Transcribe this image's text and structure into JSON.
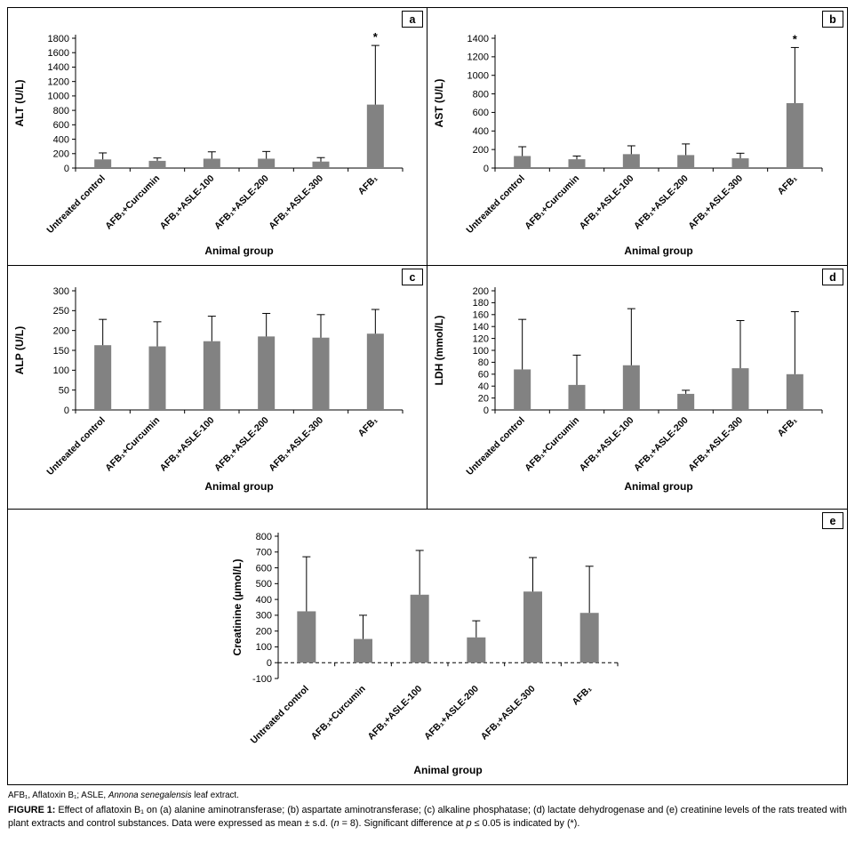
{
  "footer": {
    "abbrev_part1": "AFB₁, Aflatoxin B₁; ASLE, ",
    "abbrev_italic": "Annona senegalensis",
    "abbrev_part2": " leaf extract.",
    "figure_label": "FIGURE 1:",
    "caption_part1": " Effect of aflatoxin B₁ on (a) alanine aminotransferase; (b) aspartate aminotransferase; (c) alkaline phosphatase; (d) lactate dehydrogenase and (e) creatinine levels of the rats treated with plant extracts and control substances. Data were expressed as mean ± s.d. (",
    "caption_italic_n": "n",
    "caption_part2": " = 8). Significant difference at ",
    "caption_italic_p": "p",
    "caption_part3": " ≤ 0.05 is indicated by (*)."
  },
  "chart_data": [
    {
      "id": "a",
      "panel_label": "a",
      "type": "bar",
      "title": "",
      "xlabel": "Animal group",
      "ylabel": "ALT (U/L)",
      "ylim": [
        0,
        1800
      ],
      "ytick_step": 200,
      "grid": false,
      "legend": false,
      "categories": [
        "Untreated control",
        "AFB₁+Curcumin",
        "AFB₁+ASLE-100",
        "AFB₁+ASLE-200",
        "AFB₁+ASLE-300",
        "AFB₁"
      ],
      "values": [
        120,
        100,
        130,
        130,
        90,
        880
      ],
      "errors_upper": [
        90,
        40,
        95,
        100,
        55,
        820
      ],
      "significance": [
        "",
        "",
        "",
        "",
        "",
        "*"
      ],
      "bar_color": "#828282",
      "zero_line_dashed": false
    },
    {
      "id": "b",
      "panel_label": "b",
      "type": "bar",
      "title": "",
      "xlabel": "Animal group",
      "ylabel": "AST (U/L)",
      "ylim": [
        0,
        1400
      ],
      "ytick_step": 200,
      "grid": false,
      "legend": false,
      "categories": [
        "Untreated control",
        "AFB₁+Curcumin",
        "AFB₁+ASLE-100",
        "AFB₁+ASLE-200",
        "AFB₁+ASLE-300",
        "AFB₁"
      ],
      "values": [
        130,
        95,
        150,
        140,
        105,
        700
      ],
      "errors_upper": [
        100,
        35,
        90,
        120,
        55,
        600
      ],
      "significance": [
        "",
        "",
        "",
        "",
        "",
        "*"
      ],
      "bar_color": "#828282",
      "zero_line_dashed": false
    },
    {
      "id": "c",
      "panel_label": "c",
      "type": "bar",
      "title": "",
      "xlabel": "Animal group",
      "ylabel": "ALP (U/L)",
      "ylim": [
        0,
        300
      ],
      "ytick_step": 50,
      "grid": false,
      "legend": false,
      "categories": [
        "Untreated control",
        "AFB₁+Curcumin",
        "AFB₁+ASLE-100",
        "AFB₁+ASLE-200",
        "AFB₁+ASLE-300",
        "AFB₁"
      ],
      "values": [
        163,
        160,
        173,
        185,
        182,
        192
      ],
      "errors_upper": [
        65,
        62,
        63,
        58,
        58,
        61
      ],
      "significance": [
        "",
        "",
        "",
        "",
        "",
        ""
      ],
      "bar_color": "#828282",
      "zero_line_dashed": false
    },
    {
      "id": "d",
      "panel_label": "d",
      "type": "bar",
      "title": "",
      "xlabel": "Animal group",
      "ylabel": "LDH (mmol/L)",
      "ylim": [
        0,
        200
      ],
      "ytick_step": 20,
      "grid": false,
      "legend": false,
      "categories": [
        "Untreated control",
        "AFB₁+Curcumin",
        "AFB₁+ASLE-100",
        "AFB₁+ASLE-200",
        "AFB₁+ASLE-300",
        "AFB₁"
      ],
      "values": [
        68,
        42,
        75,
        27,
        70,
        60
      ],
      "errors_upper": [
        84,
        50,
        95,
        6,
        80,
        105
      ],
      "significance": [
        "",
        "",
        "",
        "",
        "",
        ""
      ],
      "bar_color": "#828282",
      "zero_line_dashed": false
    },
    {
      "id": "e",
      "panel_label": "e",
      "type": "bar",
      "title": "",
      "xlabel": "Animal group",
      "ylabel": "Creatinine (µmol/L)",
      "ylim": [
        -100,
        800
      ],
      "ytick_step": 100,
      "grid": false,
      "legend": false,
      "categories": [
        "Untreated control",
        "AFB₁+Curcumin",
        "AFB₁+ASLE-100",
        "AFB₁+ASLE-200",
        "AFB₁+ASLE-300",
        "AFB₁"
      ],
      "values": [
        325,
        150,
        430,
        160,
        450,
        315
      ],
      "errors_upper": [
        345,
        150,
        280,
        105,
        215,
        295
      ],
      "significance": [
        "",
        "",
        "",
        "",
        "",
        ""
      ],
      "bar_color": "#828282",
      "zero_line_dashed": true
    }
  ]
}
